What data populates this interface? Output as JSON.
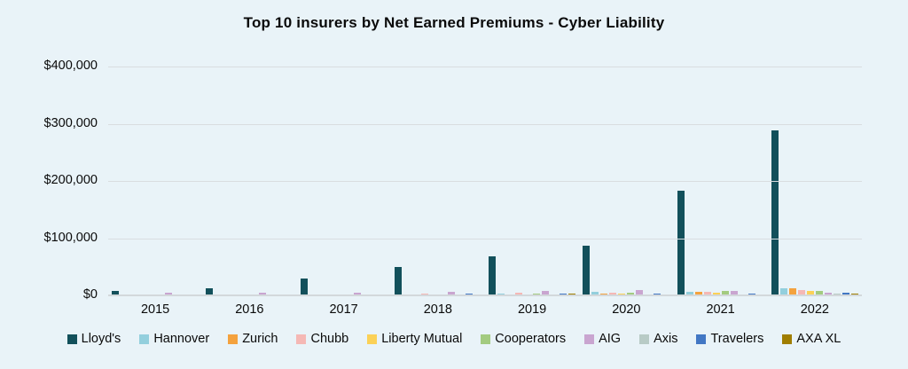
{
  "title": "Top 10 insurers by Net Earned Premiums  - Cyber Liability",
  "colors": {
    "background": "#e9f3f8",
    "gridline": "#d9dde0",
    "axis_line": "#d3d8db",
    "text": "#0a0a0a"
  },
  "chart_data": {
    "type": "bar",
    "grouped": true,
    "title": "Top 10 insurers by Net Earned Premiums  - Cyber Liability",
    "categories": [
      "2015",
      "2016",
      "2017",
      "2018",
      "2019",
      "2020",
      "2021",
      "2022"
    ],
    "series": [
      {
        "name": "Lloyd's",
        "color": "#12505b",
        "values": [
          8000,
          13000,
          29000,
          50000,
          68000,
          87000,
          183000,
          288000
        ]
      },
      {
        "name": "Hannover",
        "color": "#93cfdd",
        "values": [
          300,
          400,
          1400,
          1500,
          3500,
          6500,
          6500,
          13000
        ]
      },
      {
        "name": "Zurich",
        "color": "#f4a23e",
        "values": [
          200,
          300,
          400,
          600,
          2000,
          3500,
          5500,
          12000
        ]
      },
      {
        "name": "Chubb",
        "color": "#f5b8b5",
        "values": [
          1200,
          500,
          1000,
          2500,
          4000,
          5000,
          6500,
          10000
        ]
      },
      {
        "name": "Liberty Mutual",
        "color": "#fbd157",
        "values": [
          200,
          300,
          500,
          700,
          2000,
          3500,
          5000,
          8500
        ]
      },
      {
        "name": "Cooperators",
        "color": "#a3cb80",
        "values": [
          400,
          500,
          800,
          2000,
          3500,
          4500,
          7500,
          7500
        ]
      },
      {
        "name": "AIG",
        "color": "#c9a5d0",
        "values": [
          4000,
          4000,
          4000,
          6000,
          7500,
          9500,
          7500,
          4500
        ]
      },
      {
        "name": "Axis",
        "color": "#b8cbc6",
        "values": [
          300,
          1400,
          400,
          500,
          600,
          1000,
          2000,
          3500
        ]
      },
      {
        "name": "Travelers",
        "color": "#4277c4",
        "values": [
          300,
          400,
          1000,
          2500,
          2500,
          3500,
          3500,
          4000
        ]
      },
      {
        "name": "AXA XL",
        "color": "#a07e00",
        "values": [
          100,
          200,
          300,
          1500,
          2500,
          1000,
          2000,
          3000
        ]
      }
    ],
    "xlabel": "",
    "ylabel": "",
    "ylim": [
      0,
      400000
    ],
    "yticks": [
      {
        "value": 400000,
        "label": "$400,000"
      },
      {
        "value": 300000,
        "label": "$300,000"
      },
      {
        "value": 200000,
        "label": "$200,000"
      },
      {
        "value": 100000,
        "label": "$100,000"
      },
      {
        "value": 0,
        "label": "$0"
      }
    ],
    "grid": true,
    "legend_position": "bottom"
  }
}
